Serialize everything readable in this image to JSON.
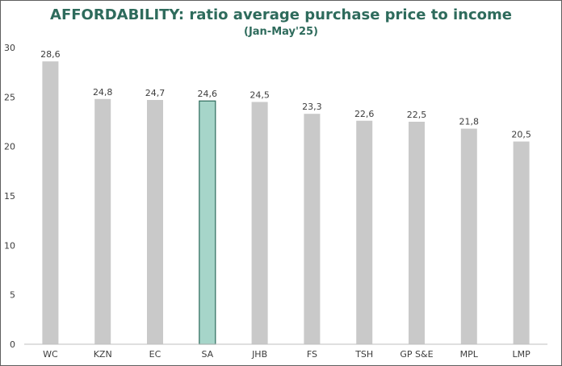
{
  "colors": {
    "bar": "#c9c9c9",
    "highlight_bar": "#a6d5c9",
    "highlight_outline": "#2e6b5c",
    "title": "#2e6b5c",
    "axis": "#bfbfbf",
    "text": "#3d3d3d"
  },
  "chart_data": {
    "type": "bar",
    "title": "AFFORDABILITY: ratio average purchase price to income",
    "subtitle": "(Jan-May'25)",
    "xlabel": "",
    "ylabel": "",
    "categories": [
      "WC",
      "KZN",
      "EC",
      "SA",
      "JHB",
      "FS",
      "TSH",
      "GP S&E",
      "MPL",
      "LMP"
    ],
    "values": [
      28.6,
      24.8,
      24.7,
      24.6,
      24.5,
      23.3,
      22.6,
      22.5,
      21.8,
      20.5
    ],
    "data_labels": [
      "28,6",
      "24,8",
      "24,7",
      "24,6",
      "24,5",
      "23,3",
      "22,6",
      "22,5",
      "21,8",
      "20,5"
    ],
    "highlight_category": "SA",
    "ylim": [
      0,
      30
    ],
    "yticks": [
      0,
      5,
      10,
      15,
      20,
      25,
      30
    ],
    "grid": false,
    "legend": "none"
  }
}
